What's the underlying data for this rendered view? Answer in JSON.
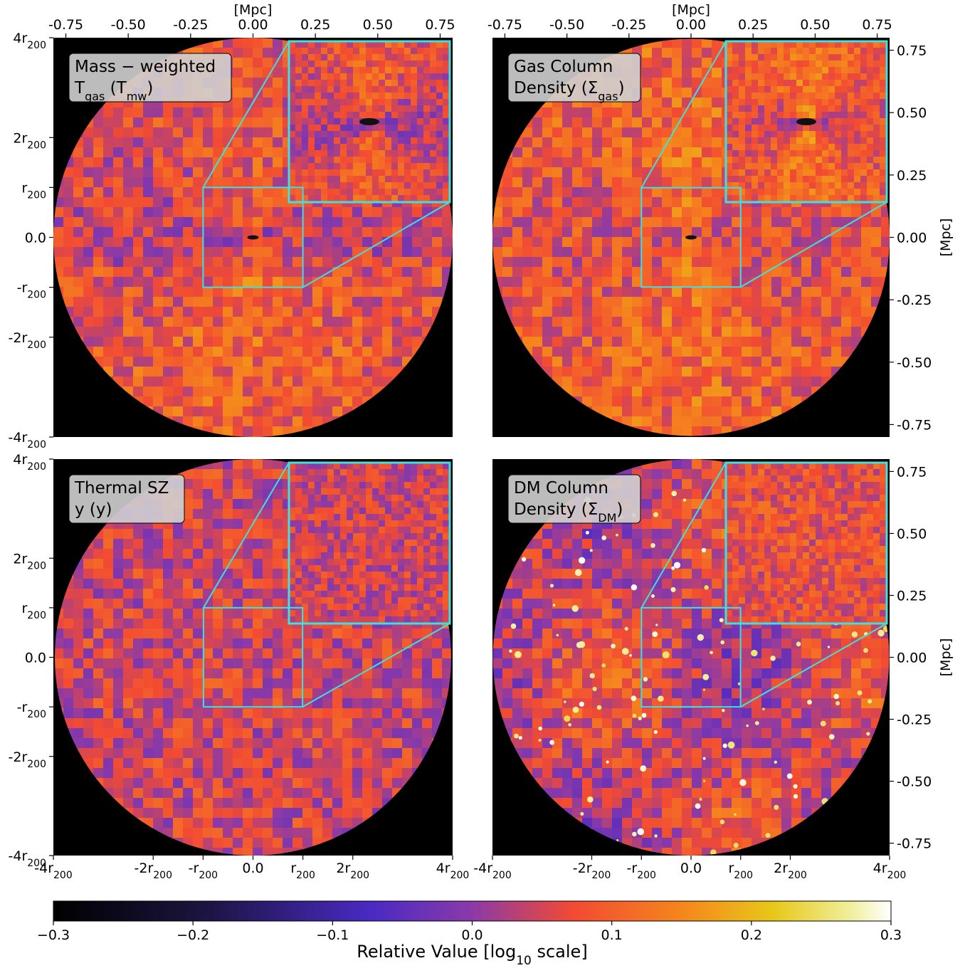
{
  "chart_data": {
    "type": "heatmap",
    "colormap": "plasma-like (dark navy → purple → red-orange → yellow → white)",
    "top_axis": {
      "label": "[Mpc]",
      "ticks": [
        "-0.75",
        "-0.50",
        "-0.25",
        "0.00",
        "0.25",
        "0.50",
        "0.75"
      ],
      "values": [
        -0.75,
        -0.5,
        -0.25,
        0.0,
        0.25,
        0.5,
        0.75
      ]
    },
    "right_axis": {
      "label": "[Mpc]",
      "ticks": [
        "0.75",
        "0.50",
        "0.25",
        "0.00",
        "-0.25",
        "-0.50",
        "-0.75"
      ],
      "values": [
        0.75,
        0.5,
        0.25,
        0.0,
        -0.25,
        -0.5,
        -0.75
      ]
    },
    "left_axis_ticks": [
      {
        "base": "4r",
        "sub": "200",
        "pos": 4
      },
      {
        "base": "2r",
        "sub": "200",
        "pos": 2
      },
      {
        "base": "r",
        "sub": "200",
        "pos": 1
      },
      {
        "base": "0.0",
        "sub": "",
        "pos": 0
      },
      {
        "base": "-r",
        "sub": "200",
        "pos": -1
      },
      {
        "base": "-2r",
        "sub": "200",
        "pos": -2
      },
      {
        "base": "-4r",
        "sub": "200",
        "pos": -4
      }
    ],
    "bottom_axis_ticks": [
      {
        "base": "-4r",
        "sub": "200",
        "pos": -4
      },
      {
        "base": "-2r",
        "sub": "200",
        "pos": -2
      },
      {
        "base": "-r",
        "sub": "200",
        "pos": -1
      },
      {
        "base": "0.0",
        "sub": "",
        "pos": 0
      },
      {
        "base": "r",
        "sub": "200",
        "pos": 1
      },
      {
        "base": "2r",
        "sub": "200",
        "pos": 2
      },
      {
        "base": "4r",
        "sub": "200",
        "pos": 4
      }
    ],
    "inset_extent_r200": [
      -1,
      1
    ],
    "panels": [
      {
        "line1": {
          "text": "Mass − weighted"
        },
        "line2": {
          "base": "T",
          "sub": "gas",
          "mid": " (T",
          "sub2": "mw",
          "end": ")"
        },
        "feature": "dipole",
        "tone": 0.0
      },
      {
        "line1": {
          "text": "Gas Column"
        },
        "line2": {
          "base": "Density (Σ",
          "sub": "gas",
          "mid": ")",
          "sub2": "",
          "end": ""
        },
        "feature": "dipole",
        "tone": 0.05
      },
      {
        "line1": {
          "text": "Thermal SZ"
        },
        "line2": {
          "base": "y (y)",
          "sub": "",
          "mid": "",
          "sub2": "",
          "end": ""
        },
        "feature": "none",
        "tone": -0.02
      },
      {
        "line1": {
          "text": "DM Column"
        },
        "line2": {
          "base": "Density (Σ",
          "sub": "DM",
          "mid": ")",
          "sub2": "",
          "end": ""
        },
        "feature": "clumps",
        "tone": 0.02
      }
    ],
    "colorbar": {
      "label": "Relative Value [log",
      "label_sub": "10",
      "label_end": " scale]",
      "ticks": [
        "−0.3",
        "−0.2",
        "−0.1",
        "0.0",
        "0.1",
        "0.2",
        "0.3"
      ],
      "values": [
        -0.3,
        -0.2,
        -0.1,
        0.0,
        0.1,
        0.2,
        0.3
      ],
      "range": [
        -0.3,
        0.3
      ]
    },
    "colors": {
      "inset_frame": "#3ee0e0",
      "background": "#000000",
      "label_box": "#d0d0d0"
    }
  }
}
